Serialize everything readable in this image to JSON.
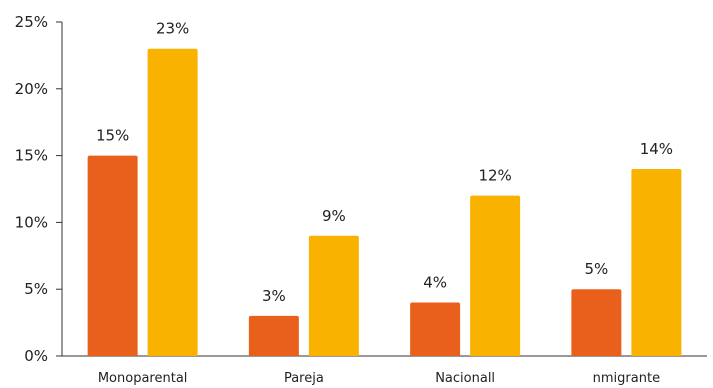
{
  "chart_data": {
    "type": "bar",
    "categories": [
      "Monoparental",
      "Pareja",
      "Nacionall",
      "nmigrante"
    ],
    "series": [
      {
        "values": [
          15,
          3,
          4,
          5
        ],
        "color": "#E8601C"
      },
      {
        "values": [
          23,
          9,
          12,
          14
        ],
        "color": "#F9B200"
      }
    ],
    "data_labels": [
      [
        "15%",
        "3%",
        "4%",
        "5%"
      ],
      [
        "23%",
        "9%",
        "12%",
        "14%"
      ]
    ],
    "yticks": [
      0,
      5,
      10,
      15,
      20,
      25
    ],
    "ytick_labels": [
      "0%",
      "5%",
      "10%",
      "15%",
      "20%",
      "25%"
    ],
    "ylim": [
      0,
      25
    ],
    "title": "",
    "xlabel": "",
    "ylabel": "",
    "grid": false,
    "legend": "none"
  }
}
